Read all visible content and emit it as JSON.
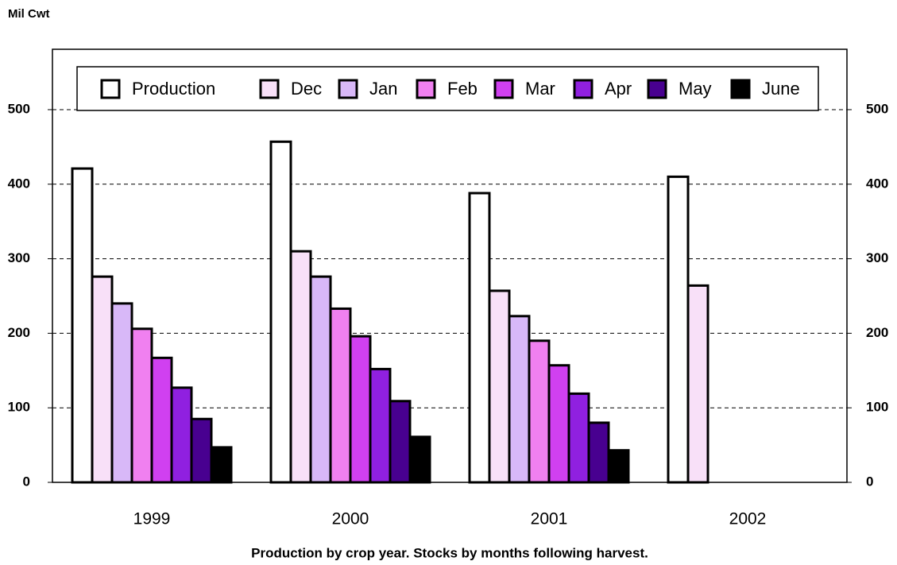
{
  "chart_data": {
    "type": "bar",
    "y_label": "Mil Cwt",
    "footnote": "Production by crop year.  Stocks by months following harvest.",
    "categories": [
      "1999",
      "2000",
      "2001",
      "2002"
    ],
    "series": [
      {
        "name": "Production",
        "color": "#ffffff",
        "values": [
          421,
          457,
          388,
          410
        ]
      },
      {
        "name": "Dec",
        "color": "#f8e0f8",
        "values": [
          276,
          310,
          257,
          264
        ]
      },
      {
        "name": "Jan",
        "color": "#d8b8f8",
        "values": [
          240,
          276,
          223,
          null
        ]
      },
      {
        "name": "Feb",
        "color": "#f080f0",
        "values": [
          206,
          233,
          190,
          null
        ]
      },
      {
        "name": "Mar",
        "color": "#d040f0",
        "values": [
          167,
          196,
          157,
          null
        ]
      },
      {
        "name": "Apr",
        "color": "#9020e0",
        "values": [
          127,
          152,
          119,
          null
        ]
      },
      {
        "name": "May",
        "color": "#480090",
        "values": [
          85,
          109,
          80,
          null
        ]
      },
      {
        "name": "June",
        "color": "#000000",
        "values": [
          47,
          61,
          43,
          null
        ]
      }
    ],
    "ylim": [
      0,
      581
    ],
    "yticks": [
      0,
      100,
      200,
      300,
      400,
      500
    ],
    "grid": true,
    "legend": "top"
  }
}
